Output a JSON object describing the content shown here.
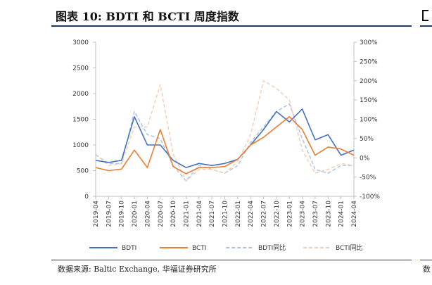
{
  "title": "图表 10:  BDTI 和 BCTI 周度指数",
  "source": "数据来源: Baltic Exchange, 华福证券研究所",
  "next_panel": {
    "source_fragment": "数"
  },
  "chart_data": {
    "type": "line",
    "title": "",
    "x": [
      "2019-04",
      "2019-07",
      "2019-10",
      "2020-01",
      "2020-04",
      "2020-07",
      "2020-10",
      "2021-01",
      "2021-04",
      "2021-07",
      "2021-10",
      "2022-01",
      "2022-04",
      "2022-07",
      "2022-10",
      "2023-01",
      "2023-04",
      "2023-07",
      "2023-10",
      "2024-01",
      "2024-04"
    ],
    "x_ticks": [
      "2019-04",
      "2019-07",
      "2019-10",
      "2020-01",
      "2020-04",
      "2020-07",
      "2020-10",
      "2021-01",
      "2021-04",
      "2021-07",
      "2021-10",
      "2022-01",
      "2022-04",
      "2022-07",
      "2022-10",
      "2023-01",
      "2023-04",
      "2023-07",
      "2023-10",
      "2024-01",
      "2024-04"
    ],
    "y_left": {
      "ticks": [
        "0",
        "500",
        "1000",
        "1500",
        "2000",
        "2500",
        "3000"
      ],
      "range": [
        0,
        3000
      ]
    },
    "y_right": {
      "ticks": [
        "-100%",
        "-50%",
        "0%",
        "50%",
        "100%",
        "150%",
        "200%",
        "250%",
        "300%"
      ],
      "range": [
        -100,
        300
      ]
    },
    "grid": false,
    "legend_position": "bottom",
    "series": [
      {
        "name": "BDTI",
        "axis": "left",
        "style": "solid",
        "color": "#4472c4",
        "values": [
          700,
          660,
          700,
          1550,
          1000,
          1000,
          700,
          560,
          640,
          600,
          640,
          720,
          1000,
          1300,
          1650,
          1450,
          1700,
          1100,
          1200,
          800,
          900
        ]
      },
      {
        "name": "BCTI",
        "axis": "left",
        "style": "solid",
        "color": "#ed7d31",
        "values": [
          560,
          500,
          530,
          900,
          560,
          1300,
          580,
          440,
          560,
          560,
          580,
          720,
          1000,
          1150,
          1350,
          1550,
          1300,
          800,
          960,
          920,
          800
        ]
      },
      {
        "name": "BDTI同比",
        "axis": "right",
        "style": "dashed",
        "color": "#a8c0e4",
        "values": [
          8,
          -15,
          -15,
          120,
          60,
          50,
          -20,
          -60,
          -20,
          -30,
          -40,
          -20,
          40,
          80,
          120,
          140,
          50,
          -30,
          -40,
          -20,
          -20
        ]
      },
      {
        "name": "BCTI同比",
        "axis": "right",
        "style": "dashed",
        "color": "#f8cbad",
        "values": [
          10,
          -20,
          -15,
          80,
          80,
          190,
          10,
          -60,
          -30,
          -30,
          -40,
          -10,
          60,
          200,
          180,
          150,
          20,
          -40,
          -30,
          -15,
          -20
        ]
      }
    ]
  }
}
